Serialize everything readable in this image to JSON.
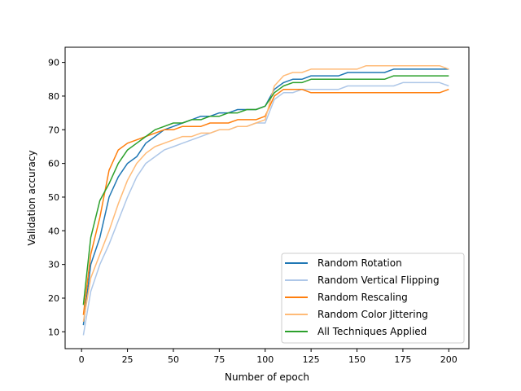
{
  "chart_data": {
    "type": "line",
    "xlabel": "Number of epoch",
    "ylabel": "Validation accuracy",
    "xlim": [
      -8.95,
      210.95
    ],
    "ylim": [
      5.0,
      94.5
    ],
    "xticks": [
      0,
      25,
      50,
      75,
      100,
      125,
      150,
      175,
      200
    ],
    "yticks": [
      10,
      20,
      30,
      40,
      50,
      60,
      70,
      80,
      90
    ],
    "grid": false,
    "legend_position": "lower-right",
    "x": [
      1,
      5,
      10,
      15,
      20,
      25,
      30,
      35,
      40,
      45,
      50,
      55,
      60,
      65,
      70,
      75,
      80,
      85,
      90,
      95,
      100,
      105,
      110,
      115,
      120,
      125,
      130,
      135,
      140,
      145,
      150,
      155,
      160,
      165,
      170,
      175,
      180,
      185,
      190,
      195,
      200
    ],
    "series": [
      {
        "name": "Random Rotation",
        "color": "#1f77b4",
        "values": [
          12,
          30,
          38,
          50,
          56,
          60,
          62,
          66,
          68,
          70,
          71,
          72,
          73,
          74,
          74,
          75,
          75,
          76,
          76,
          76,
          77,
          82,
          84,
          85,
          85,
          86,
          86,
          86,
          86,
          87,
          87,
          87,
          87,
          87,
          88,
          88,
          88,
          88,
          88,
          88,
          88
        ]
      },
      {
        "name": "Random Vertical Flipping",
        "color": "#aec7e8",
        "values": [
          9,
          22,
          30,
          36,
          43,
          50,
          56,
          60,
          62,
          64,
          65,
          66,
          67,
          68,
          69,
          70,
          70,
          71,
          71,
          72,
          72,
          79,
          81,
          81,
          82,
          82,
          82,
          82,
          82,
          83,
          83,
          83,
          83,
          83,
          83,
          84,
          84,
          84,
          84,
          84,
          83
        ]
      },
      {
        "name": "Random Rescaling",
        "color": "#ff7f0e",
        "values": [
          15,
          33,
          44,
          58,
          64,
          66,
          67,
          68,
          69,
          70,
          70,
          71,
          71,
          71,
          72,
          72,
          72,
          73,
          73,
          73,
          74,
          80,
          82,
          82,
          82,
          81,
          81,
          81,
          81,
          81,
          81,
          81,
          81,
          81,
          81,
          81,
          81,
          81,
          81,
          81,
          82
        ]
      },
      {
        "name": "Random Color Jittering",
        "color": "#ffbb78",
        "values": [
          13,
          26,
          33,
          40,
          48,
          55,
          60,
          63,
          65,
          66,
          67,
          68,
          68,
          69,
          69,
          70,
          70,
          71,
          71,
          72,
          73,
          83,
          86,
          87,
          87,
          88,
          88,
          88,
          88,
          88,
          88,
          89,
          89,
          89,
          89,
          89,
          89,
          89,
          89,
          89,
          88
        ]
      },
      {
        "name": "All Techniques Applied",
        "color": "#2ca02c",
        "values": [
          18,
          38,
          49,
          54,
          60,
          64,
          66,
          68,
          70,
          71,
          72,
          72,
          73,
          73,
          74,
          74,
          75,
          75,
          76,
          76,
          77,
          81,
          83,
          84,
          84,
          85,
          85,
          85,
          85,
          85,
          85,
          85,
          85,
          85,
          86,
          86,
          86,
          86,
          86,
          86,
          86
        ]
      }
    ]
  }
}
